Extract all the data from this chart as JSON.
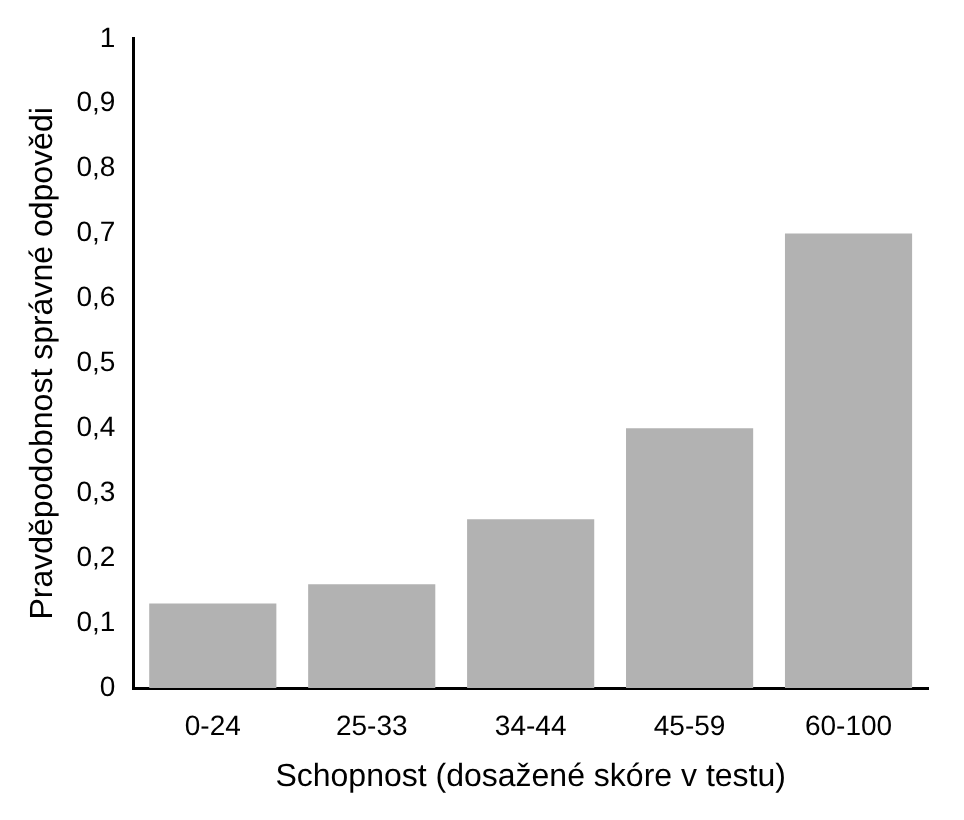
{
  "chart_data": {
    "type": "bar",
    "xlabel": "Schopnost (dosažené skóre v testu)",
    "ylabel": "Pravděpodobnost správné odpovědi",
    "categories": [
      "0-24",
      "25-33",
      "34-44",
      "45-59",
      "60-100"
    ],
    "values": [
      0.13,
      0.16,
      0.26,
      0.4,
      0.7
    ],
    "color": "#b2b2b2",
    "ylim": [
      0,
      1
    ],
    "yticks": [
      {
        "value": 0,
        "label": "0"
      },
      {
        "value": 0.1,
        "label": "0,1"
      },
      {
        "value": 0.2,
        "label": "0,2"
      },
      {
        "value": 0.3,
        "label": "0,3"
      },
      {
        "value": 0.4,
        "label": "0,4"
      },
      {
        "value": 0.5,
        "label": "0,5"
      },
      {
        "value": 0.6,
        "label": "0,6"
      },
      {
        "value": 0.7,
        "label": "0,7"
      },
      {
        "value": 0.8,
        "label": "0,8"
      },
      {
        "value": 0.9,
        "label": "0,9"
      },
      {
        "value": 1,
        "label": "1"
      }
    ],
    "grid": false,
    "legend": false
  }
}
